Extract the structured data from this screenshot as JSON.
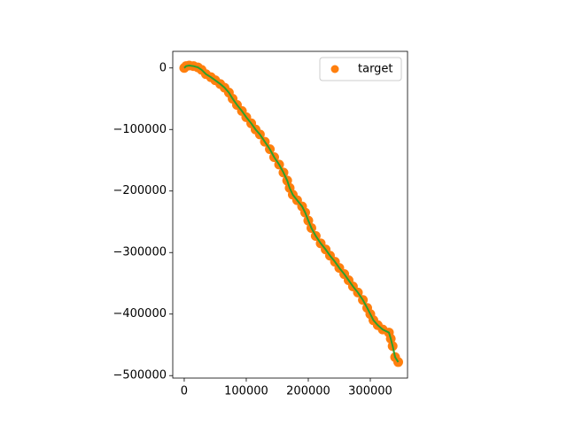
{
  "chart_data": {
    "type": "scatter",
    "x": [
      0,
      3000,
      8000,
      15000,
      22000,
      28000,
      35000,
      43000,
      50000,
      58000,
      65000,
      72000,
      78000,
      85000,
      93000,
      100000,
      108000,
      115000,
      122000,
      130000,
      138000,
      145000,
      153000,
      160000,
      166000,
      170000,
      175000,
      182000,
      190000,
      195000,
      200000,
      205000,
      212000,
      220000,
      228000,
      235000,
      243000,
      250000,
      258000,
      265000,
      272000,
      280000,
      288000,
      295000,
      300000,
      305000,
      312000,
      320000,
      330000,
      333000,
      336000,
      340000,
      345000
    ],
    "series": [
      {
        "name": "target",
        "color": "#ff7f0e",
        "values": [
          0,
          3000,
          4000,
          3000,
          1000,
          -3000,
          -10000,
          -15000,
          -20000,
          -26000,
          -32000,
          -40000,
          -50000,
          -60000,
          -70000,
          -80000,
          -90000,
          -100000,
          -108000,
          -120000,
          -132000,
          -145000,
          -157000,
          -170000,
          -183000,
          -195000,
          -206000,
          -215000,
          -225000,
          -235000,
          -248000,
          -260000,
          -273000,
          -285000,
          -295000,
          -305000,
          -315000,
          -325000,
          -335000,
          -345000,
          -355000,
          -365000,
          -377000,
          -390000,
          -400000,
          -410000,
          -418000,
          -425000,
          -430000,
          -440000,
          -452000,
          -470000,
          -478000
        ]
      },
      {
        "color": "#2ca02c",
        "values": [
          0,
          3000,
          4000,
          3000,
          1000,
          -3000,
          -10000,
          -15000,
          -20000,
          -26000,
          -32000,
          -40000,
          -50000,
          -60000,
          -70000,
          -80000,
          -90000,
          -100000,
          -108000,
          -120000,
          -132000,
          -145000,
          -157000,
          -170000,
          -183000,
          -195000,
          -206000,
          -215000,
          -225000,
          -235000,
          -248000,
          -260000,
          -273000,
          -285000,
          -295000,
          -305000,
          -315000,
          -325000,
          -335000,
          -345000,
          -355000,
          -365000,
          -377000,
          -390000,
          -400000,
          -410000,
          -418000,
          -425000,
          -430000,
          -440000,
          -452000,
          -470000,
          -478000
        ]
      }
    ],
    "xlim": [
      -18500,
      360000
    ],
    "ylim": [
      -504000,
      27000
    ],
    "xticks": [
      0,
      100000,
      200000,
      300000
    ],
    "yticks": [
      0,
      {
        "value": -100000,
        "label": "−100000"
      },
      {
        "value": -200000,
        "label": "−200000"
      },
      {
        "value": -300000,
        "label": "−300000"
      },
      {
        "value": -400000,
        "label": "−400000"
      },
      {
        "value": -500000,
        "label": "−500000"
      }
    ],
    "legend": "upper right"
  }
}
